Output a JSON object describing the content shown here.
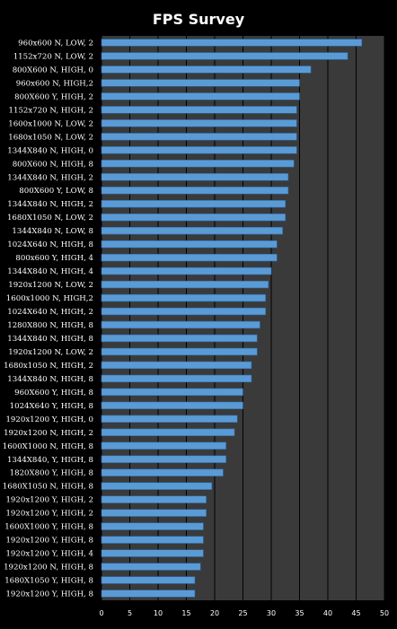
{
  "chart_data": {
    "type": "bar",
    "orientation": "horizontal",
    "title": "FPS Survey",
    "xlim": [
      0,
      50
    ],
    "x_ticks": [
      "0",
      "5",
      "10",
      "15",
      "20",
      "25",
      "30",
      "35",
      "40",
      "45",
      "50"
    ],
    "grid": "vertical",
    "legend": "none",
    "categories": [
      "960x600 N, LOW, 2",
      "1152x720 N, LOW, 2",
      "800X600 N, HIGH, 0",
      "960x600 N, HIGH,2",
      "800X600 Y, HIGH, 2",
      "1152x720 N, HIGH, 2",
      "1600x1000 N, LOW, 2",
      "1680x1050 N, LOW, 2",
      "1344X840 N, HIGH, 0",
      "800X600 N, HIGH, 8",
      "1344X840 N, HIGH, 2",
      "800X600 Y, LOW, 8",
      "1344X840 N, HIGH, 2",
      "1680X1050 N, LOW, 2",
      "1344X840 N, LOW, 8",
      "1024X640 N, HIGH, 8",
      "800x600 Y, HIGH, 4",
      "1344X840 N, HIGH, 4",
      "1920x1200 N, LOW, 2",
      "1600x1000 N, HIGH,2",
      "1024X640 N, HIGH, 2",
      "1280X800 N, HIGH, 8",
      "1344X840 N, HIGH, 8",
      "1920x1200 N, LOW, 2",
      "1680x1050 N, HIGH, 2",
      "1344X840 N, HIGH, 8",
      "960X600 Y, HIGH, 8",
      "1024X640 Y, HIGH, 8",
      "1920x1200 Y, HIGH, 0",
      "1920x1200 N, HIGH, 2",
      "1600X1000 N, HIGH, 8",
      "1344X840, Y, HIGH, 8",
      "1820X800 Y, HIGH, 8",
      "1680X1050 N, HIGH, 8",
      "1920x1200 Y, HIGH, 2",
      "1920x1200 Y, HIGH, 2",
      "1600X1000 Y, HIGH, 8",
      "1920x1200 Y, HIGH, 8",
      "1920x1200 Y, HIGH, 4",
      "1920x1200 N, HIGH, 8",
      "1680X1050 Y, HIGH, 8",
      "1920x1200 Y, HIGH, 8"
    ],
    "values": [
      46,
      43.5,
      37,
      35,
      35,
      34.5,
      34.5,
      34.5,
      34.5,
      34,
      33,
      33,
      32.5,
      32.5,
      32,
      31,
      31,
      30,
      29.5,
      29,
      29,
      28,
      27.5,
      27.5,
      26.5,
      26.5,
      25,
      25,
      24,
      23.5,
      22,
      22,
      21.5,
      19.5,
      18.5,
      18.5,
      18,
      18,
      18,
      17.5,
      16.5,
      16.5
    ],
    "colors": {
      "background": "#000000",
      "plot_area": "#3a3a3a",
      "bar": "#5b9bd5",
      "bar_edge": "#2a6aa8",
      "grid": "#000000",
      "text": "#ffffff"
    }
  }
}
